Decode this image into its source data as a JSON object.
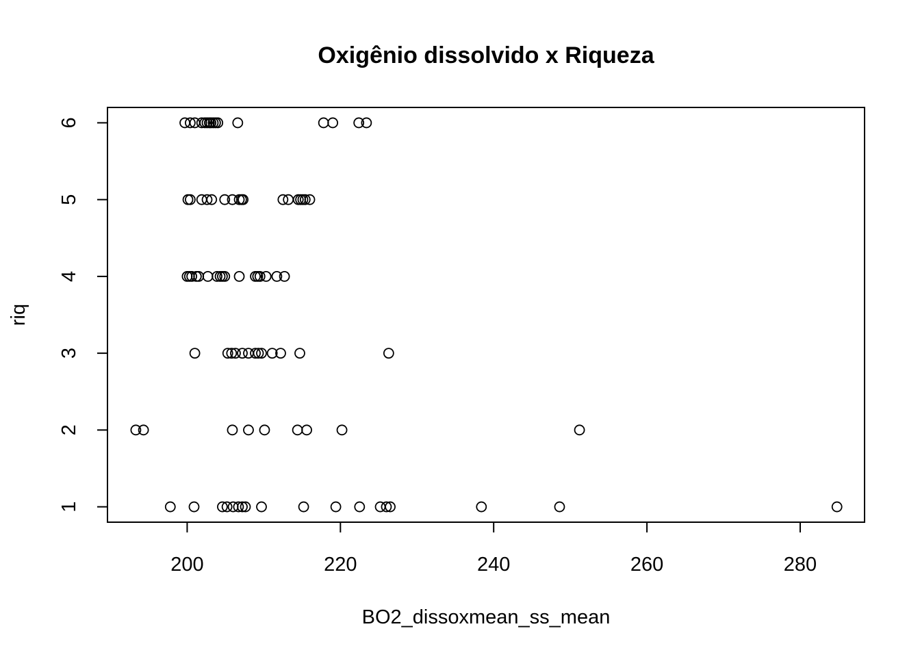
{
  "chart_data": {
    "type": "scatter",
    "title": "Oxigênio dissolvido x Riqueza",
    "xlabel": "BO2_dissoxmean_ss_mean",
    "ylabel": "riq",
    "xlim": [
      189.6,
      288.4
    ],
    "ylim": [
      0.8,
      6.2
    ],
    "xticks": [
      200,
      220,
      240,
      260,
      280
    ],
    "yticks": [
      1,
      2,
      3,
      4,
      5,
      6
    ],
    "grid": false,
    "points": [
      {
        "x": 199.7,
        "y": 6
      },
      {
        "x": 200.4,
        "y": 6
      },
      {
        "x": 201.0,
        "y": 6
      },
      {
        "x": 201.9,
        "y": 6
      },
      {
        "x": 202.3,
        "y": 6
      },
      {
        "x": 202.6,
        "y": 6
      },
      {
        "x": 202.9,
        "y": 6
      },
      {
        "x": 203.1,
        "y": 6
      },
      {
        "x": 203.4,
        "y": 6
      },
      {
        "x": 203.7,
        "y": 6
      },
      {
        "x": 204.0,
        "y": 6
      },
      {
        "x": 206.6,
        "y": 6
      },
      {
        "x": 217.8,
        "y": 6
      },
      {
        "x": 219.0,
        "y": 6
      },
      {
        "x": 222.4,
        "y": 6
      },
      {
        "x": 223.4,
        "y": 6
      },
      {
        "x": 200.1,
        "y": 5
      },
      {
        "x": 200.4,
        "y": 5
      },
      {
        "x": 201.9,
        "y": 5
      },
      {
        "x": 202.6,
        "y": 5
      },
      {
        "x": 203.2,
        "y": 5
      },
      {
        "x": 204.9,
        "y": 5
      },
      {
        "x": 205.9,
        "y": 5
      },
      {
        "x": 206.8,
        "y": 5
      },
      {
        "x": 207.1,
        "y": 5
      },
      {
        "x": 207.3,
        "y": 5
      },
      {
        "x": 212.5,
        "y": 5
      },
      {
        "x": 213.2,
        "y": 5
      },
      {
        "x": 214.5,
        "y": 5
      },
      {
        "x": 214.8,
        "y": 5
      },
      {
        "x": 215.1,
        "y": 5
      },
      {
        "x": 215.4,
        "y": 5
      },
      {
        "x": 216.0,
        "y": 5
      },
      {
        "x": 200.0,
        "y": 4
      },
      {
        "x": 200.3,
        "y": 4
      },
      {
        "x": 200.6,
        "y": 4
      },
      {
        "x": 201.2,
        "y": 4
      },
      {
        "x": 201.5,
        "y": 4
      },
      {
        "x": 202.7,
        "y": 4
      },
      {
        "x": 203.9,
        "y": 4
      },
      {
        "x": 204.3,
        "y": 4
      },
      {
        "x": 204.6,
        "y": 4
      },
      {
        "x": 204.9,
        "y": 4
      },
      {
        "x": 206.8,
        "y": 4
      },
      {
        "x": 208.9,
        "y": 4
      },
      {
        "x": 209.2,
        "y": 4
      },
      {
        "x": 209.5,
        "y": 4
      },
      {
        "x": 210.3,
        "y": 4
      },
      {
        "x": 211.7,
        "y": 4
      },
      {
        "x": 212.7,
        "y": 4
      },
      {
        "x": 201.0,
        "y": 3
      },
      {
        "x": 205.3,
        "y": 3
      },
      {
        "x": 205.8,
        "y": 3
      },
      {
        "x": 206.3,
        "y": 3
      },
      {
        "x": 207.2,
        "y": 3
      },
      {
        "x": 208.0,
        "y": 3
      },
      {
        "x": 208.9,
        "y": 3
      },
      {
        "x": 209.3,
        "y": 3
      },
      {
        "x": 209.7,
        "y": 3
      },
      {
        "x": 211.1,
        "y": 3
      },
      {
        "x": 212.2,
        "y": 3
      },
      {
        "x": 214.7,
        "y": 3
      },
      {
        "x": 226.3,
        "y": 3
      },
      {
        "x": 193.3,
        "y": 2
      },
      {
        "x": 194.3,
        "y": 2
      },
      {
        "x": 205.9,
        "y": 2
      },
      {
        "x": 208.0,
        "y": 2
      },
      {
        "x": 210.1,
        "y": 2
      },
      {
        "x": 214.4,
        "y": 2
      },
      {
        "x": 215.6,
        "y": 2
      },
      {
        "x": 220.2,
        "y": 2
      },
      {
        "x": 251.2,
        "y": 2
      },
      {
        "x": 197.8,
        "y": 1
      },
      {
        "x": 200.9,
        "y": 1
      },
      {
        "x": 204.6,
        "y": 1
      },
      {
        "x": 205.2,
        "y": 1
      },
      {
        "x": 206.0,
        "y": 1
      },
      {
        "x": 206.7,
        "y": 1
      },
      {
        "x": 207.2,
        "y": 1
      },
      {
        "x": 207.6,
        "y": 1
      },
      {
        "x": 209.7,
        "y": 1
      },
      {
        "x": 215.2,
        "y": 1
      },
      {
        "x": 219.4,
        "y": 1
      },
      {
        "x": 222.5,
        "y": 1
      },
      {
        "x": 225.2,
        "y": 1
      },
      {
        "x": 226.0,
        "y": 1
      },
      {
        "x": 226.5,
        "y": 1
      },
      {
        "x": 238.4,
        "y": 1
      },
      {
        "x": 248.6,
        "y": 1
      },
      {
        "x": 284.8,
        "y": 1
      }
    ]
  }
}
